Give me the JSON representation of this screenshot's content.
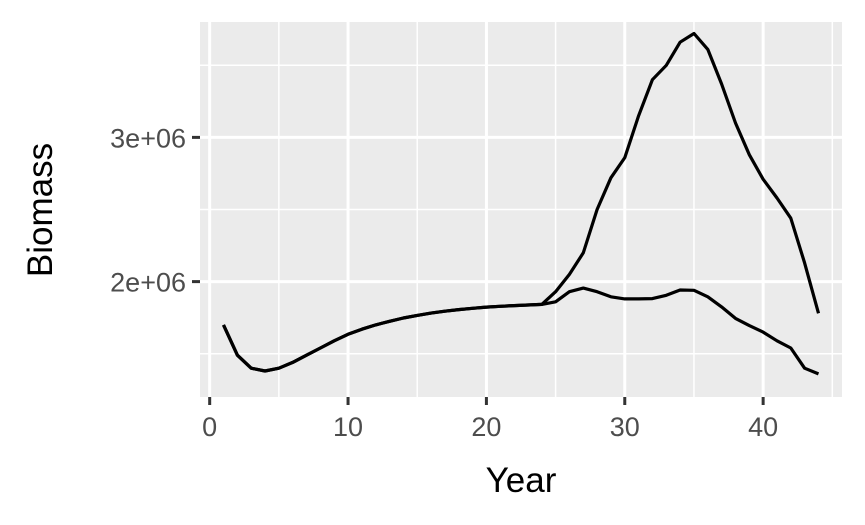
{
  "chart_data": {
    "type": "line",
    "title": "",
    "xlabel": "Year",
    "ylabel": "Biomass",
    "xlim": [
      -0.7,
      45.7
    ],
    "ylim": [
      1200000,
      3800000
    ],
    "x_ticks": [
      0,
      10,
      20,
      30,
      40
    ],
    "x_tick_labels": [
      "0",
      "10",
      "20",
      "30",
      "40"
    ],
    "y_ticks": [
      2000000,
      3000000
    ],
    "y_tick_labels": [
      "2e+06",
      "3e+06"
    ],
    "grid": true,
    "legend": "none",
    "colors": {
      "panel": "#ebebeb",
      "grid": "#ffffff",
      "line": "#000000",
      "tick": "#333333"
    },
    "x": [
      1,
      2,
      3,
      4,
      5,
      6,
      7,
      8,
      9,
      10,
      11,
      12,
      13,
      14,
      15,
      16,
      17,
      18,
      19,
      20,
      21,
      22,
      23,
      24,
      25,
      26,
      27,
      28,
      29,
      30,
      31,
      32,
      33,
      34,
      35,
      36,
      37,
      38,
      39,
      40,
      41,
      42,
      43,
      44
    ],
    "series": [
      {
        "values": [
          1700000,
          1490000,
          1400000,
          1380000,
          1400000,
          1440000,
          1490000,
          1540000,
          1590000,
          1635000,
          1670000,
          1700000,
          1725000,
          1748000,
          1766000,
          1782000,
          1795000,
          1806000,
          1815000,
          1823000,
          1829000,
          1834000,
          1838000,
          1842000,
          1930000,
          2050000,
          2200000,
          2500000,
          2720000,
          2860000,
          3150000,
          3400000,
          3500000,
          3660000,
          3720000,
          3610000,
          3370000,
          3100000,
          2880000,
          2710000,
          2580000,
          2440000,
          2130000,
          1780000
        ]
      },
      {
        "values": [
          1700000,
          1490000,
          1400000,
          1380000,
          1400000,
          1440000,
          1490000,
          1540000,
          1590000,
          1635000,
          1670000,
          1700000,
          1725000,
          1748000,
          1766000,
          1782000,
          1795000,
          1806000,
          1815000,
          1823000,
          1829000,
          1834000,
          1838000,
          1842000,
          1860000,
          1930000,
          1955000,
          1930000,
          1895000,
          1880000,
          1880000,
          1882000,
          1905000,
          1942000,
          1940000,
          1895000,
          1825000,
          1745000,
          1695000,
          1650000,
          1590000,
          1540000,
          1400000,
          1360000
        ]
      }
    ]
  }
}
